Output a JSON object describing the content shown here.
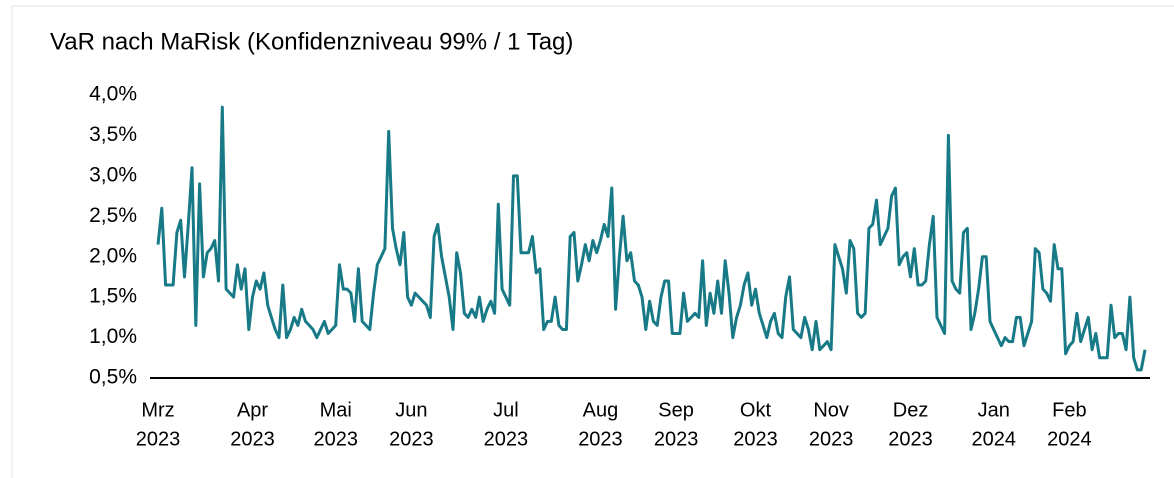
{
  "chart_data": {
    "type": "line",
    "title": "VaR nach MaRisk (Konfidenzniveau 99% / 1 Tag)",
    "color": "#177a86",
    "values": [
      2.15,
      2.6,
      1.65,
      1.65,
      1.65,
      2.3,
      2.45,
      1.75,
      2.4,
      3.1,
      1.15,
      2.9,
      1.75,
      2.05,
      2.1,
      2.2,
      1.7,
      3.85,
      1.6,
      1.55,
      1.5,
      1.9,
      1.6,
      1.85,
      1.1,
      1.5,
      1.7,
      1.6,
      1.8,
      1.4,
      1.25,
      1.1,
      1.0,
      1.65,
      1.0,
      1.1,
      1.25,
      1.15,
      1.35,
      1.2,
      1.15,
      1.1,
      1.0,
      1.1,
      1.2,
      1.05,
      1.1,
      1.15,
      1.9,
      1.6,
      1.6,
      1.55,
      1.2,
      1.85,
      1.2,
      1.15,
      1.1,
      1.55,
      1.9,
      2.0,
      2.1,
      3.55,
      2.35,
      2.1,
      1.9,
      2.3,
      1.5,
      1.4,
      1.55,
      1.5,
      1.45,
      1.4,
      1.25,
      2.25,
      2.4,
      2.0,
      1.75,
      1.5,
      1.1,
      2.05,
      1.8,
      1.3,
      1.25,
      1.35,
      1.25,
      1.5,
      1.2,
      1.35,
      1.45,
      1.3,
      2.65,
      1.6,
      1.5,
      1.4,
      3.0,
      3.0,
      2.05,
      2.05,
      2.05,
      2.25,
      1.8,
      1.85,
      1.1,
      1.2,
      1.2,
      1.5,
      1.15,
      1.1,
      1.1,
      2.25,
      2.3,
      1.7,
      1.9,
      2.15,
      1.95,
      2.2,
      2.05,
      2.2,
      2.4,
      2.25,
      2.85,
      1.35,
      2.0,
      2.5,
      1.95,
      2.05,
      1.7,
      1.65,
      1.5,
      1.1,
      1.45,
      1.2,
      1.15,
      1.5,
      1.7,
      1.7,
      1.05,
      1.05,
      1.05,
      1.55,
      1.2,
      1.25,
      1.3,
      1.25,
      1.95,
      1.15,
      1.55,
      1.3,
      1.7,
      1.3,
      1.95,
      1.55,
      1.0,
      1.25,
      1.4,
      1.65,
      1.8,
      1.4,
      1.6,
      1.3,
      1.15,
      1.0,
      1.2,
      1.3,
      1.05,
      1.0,
      1.5,
      1.75,
      1.1,
      1.05,
      1.0,
      1.25,
      1.1,
      0.85,
      1.2,
      0.85,
      0.9,
      0.95,
      0.85,
      2.15,
      2.0,
      1.85,
      1.55,
      2.2,
      2.1,
      1.3,
      1.25,
      1.3,
      2.35,
      2.4,
      2.7,
      2.15,
      2.25,
      2.35,
      2.75,
      2.85,
      1.9,
      2.0,
      2.05,
      1.75,
      2.1,
      1.65,
      1.65,
      1.7,
      2.15,
      2.5,
      1.25,
      1.15,
      1.05,
      3.5,
      1.7,
      1.6,
      1.55,
      2.3,
      2.35,
      1.1,
      1.3,
      1.6,
      2.0,
      2.0,
      1.2,
      1.1,
      1.0,
      0.9,
      1.0,
      0.95,
      0.95,
      1.25,
      1.25,
      0.9,
      1.05,
      1.2,
      2.1,
      2.05,
      1.6,
      1.55,
      1.45,
      2.15,
      1.85,
      1.85,
      0.8,
      0.9,
      0.95,
      1.3,
      0.95,
      1.1,
      1.25,
      0.85,
      1.05,
      0.75,
      0.75,
      0.75,
      1.4,
      1.0,
      1.05,
      1.05,
      0.85,
      1.5,
      0.75,
      0.6,
      0.6,
      0.85
    ],
    "ylim": [
      0.5,
      4.0
    ],
    "yticks": [
      {
        "value": 0.5,
        "label": "0,5%"
      },
      {
        "value": 1.0,
        "label": "1,0%"
      },
      {
        "value": 1.5,
        "label": "1,5%"
      },
      {
        "value": 2.0,
        "label": "2,0%"
      },
      {
        "value": 2.5,
        "label": "2,5%"
      },
      {
        "value": 3.0,
        "label": "3,0%"
      },
      {
        "value": 3.5,
        "label": "3,5%"
      },
      {
        "value": 4.0,
        "label": "4,0%"
      }
    ],
    "xticks": [
      {
        "value": 0,
        "label": "Mrz",
        "year": "2023"
      },
      {
        "value": 25,
        "label": "Apr",
        "year": "2023"
      },
      {
        "value": 47,
        "label": "Mai",
        "year": "2023"
      },
      {
        "value": 67,
        "label": "Jun",
        "year": "2023"
      },
      {
        "value": 92,
        "label": "Jul",
        "year": "2023"
      },
      {
        "value": 117,
        "label": "Aug",
        "year": "2023"
      },
      {
        "value": 137,
        "label": "Sep",
        "year": "2023"
      },
      {
        "value": 158,
        "label": "Okt",
        "year": "2023"
      },
      {
        "value": 178,
        "label": "Nov",
        "year": "2023"
      },
      {
        "value": 199,
        "label": "Dez",
        "year": "2023"
      },
      {
        "value": 221,
        "label": "Jan",
        "year": "2024"
      },
      {
        "value": 241,
        "label": "Feb",
        "year": "2024"
      }
    ]
  }
}
